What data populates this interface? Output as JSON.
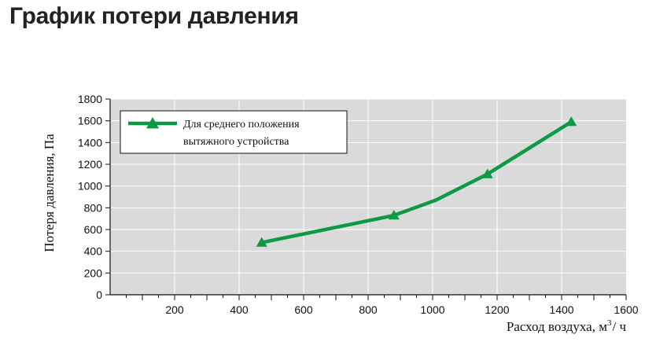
{
  "page": {
    "title": "График потери давления"
  },
  "colors": {
    "series": "#0e9a45",
    "plot_bg": "#d9dad9",
    "grid": "#ffffff"
  },
  "chart_data": {
    "type": "line",
    "xlabel": "Расход воздуха, м",
    "xlabel_sup": "3",
    "xlabel_suffix": "/ ч",
    "ylabel": "Потеря давления, Па",
    "xlim": [
      0,
      1600
    ],
    "ylim": [
      0,
      1800
    ],
    "x_ticks": [
      200,
      400,
      600,
      800,
      1000,
      1200,
      1400,
      1600
    ],
    "y_ticks": [
      0,
      200,
      400,
      600,
      800,
      1000,
      1200,
      1400,
      1600,
      1800
    ],
    "grid": true,
    "legend_position": "top-left",
    "series": [
      {
        "name_lines": [
          "Для среднего положения",
          "вытяжного устройства"
        ],
        "marker": "triangle",
        "points": [
          {
            "x": 470,
            "y": 480,
            "marker": true
          },
          {
            "x": 880,
            "y": 730,
            "marker": true
          },
          {
            "x": 1010,
            "y": 870,
            "marker": false
          },
          {
            "x": 1170,
            "y": 1110,
            "marker": true
          },
          {
            "x": 1430,
            "y": 1590,
            "marker": true
          }
        ]
      }
    ]
  }
}
